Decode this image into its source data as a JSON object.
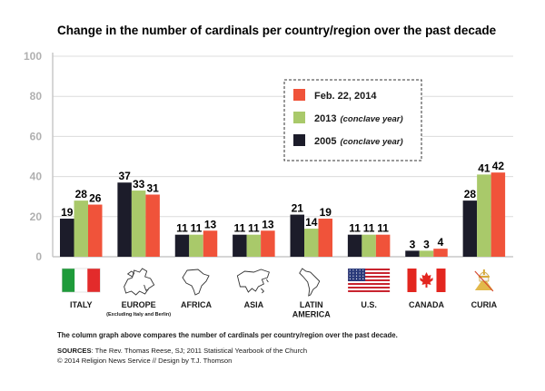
{
  "title": "Change in the number of cardinals per country/region over the past decade",
  "chart_data": {
    "type": "bar",
    "title": "Change in the number of cardinals per country/region over the past decade",
    "ylim": [
      0,
      100
    ],
    "yticks": [
      0,
      20,
      40,
      60,
      80,
      100
    ],
    "grid": true,
    "legend_position": "top-right",
    "categories": [
      "ITALY",
      "EUROPE",
      "AFRICA",
      "ASIA",
      "LATIN AMERICA",
      "U.S.",
      "CANADA",
      "CURIA"
    ],
    "category_lines": [
      [
        "ITALY"
      ],
      [
        "EUROPE"
      ],
      [
        "AFRICA"
      ],
      [
        "ASIA"
      ],
      [
        "LATIN",
        "AMERICA"
      ],
      [
        "U.S."
      ],
      [
        "CANADA"
      ],
      [
        "CURIA"
      ]
    ],
    "category_icons": [
      "italy-flag-icon",
      "europe-map-icon",
      "africa-map-icon",
      "asia-map-icon",
      "latin-america-map-icon",
      "us-flag-icon",
      "canada-flag-icon",
      "papal-emblem-icon"
    ],
    "europe_note": "(Excluding Italy and Berlin)",
    "series": [
      {
        "name": "2005",
        "note": "(conclave year)",
        "color": "#1c1c2a",
        "values": [
          19,
          37,
          11,
          11,
          21,
          11,
          3,
          28
        ]
      },
      {
        "name": "2013",
        "note": "(conclave year)",
        "color": "#a9c96a",
        "values": [
          28,
          33,
          11,
          11,
          14,
          11,
          3,
          41
        ]
      },
      {
        "name": "Feb. 22, 2014",
        "note": "",
        "color": "#f0533a",
        "values": [
          26,
          31,
          13,
          13,
          19,
          11,
          4,
          42
        ]
      }
    ],
    "legend_order": [
      2,
      1,
      0
    ]
  },
  "footer": {
    "caption": "The column graph above compares the number of cardinals per country/region over the past decade.",
    "sources_label": "SOURCES",
    "sources_text": ": The Rev. Thomas Reese, SJ; 2011 Statistical Yearbook of the Church",
    "credit": "© 2014 Religion News Service // Design by T.J. Thomson"
  }
}
